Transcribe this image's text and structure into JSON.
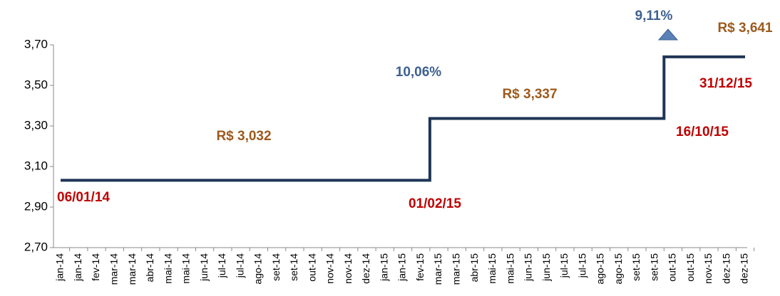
{
  "chart_data": {
    "type": "step",
    "categories": [
      "jan-14",
      "jan-14",
      "fev-14",
      "mar-14",
      "mar-14",
      "abr-14",
      "mai-14",
      "mai-14",
      "jun-14",
      "jul-14",
      "jul-14",
      "ago-14",
      "set-14",
      "set-14",
      "out-14",
      "nov-14",
      "nov-14",
      "dez-14",
      "jan-15",
      "jan-15",
      "fev-15",
      "mar-15",
      "mar-15",
      "abr-15",
      "mai-15",
      "mai-15",
      "jun-15",
      "jun-15",
      "jul-15",
      "jul-15",
      "ago-15",
      "ago-15",
      "set-15",
      "set-15",
      "out-15",
      "out-15",
      "nov-15",
      "dez-15",
      "dez-15"
    ],
    "series": [
      {
        "color": "#1f3556",
        "values": [
          3.032,
          3.032,
          3.032,
          3.032,
          3.032,
          3.032,
          3.032,
          3.032,
          3.032,
          3.032,
          3.032,
          3.032,
          3.032,
          3.032,
          3.032,
          3.032,
          3.032,
          3.032,
          3.032,
          3.032,
          3.032,
          3.337,
          3.337,
          3.337,
          3.337,
          3.337,
          3.337,
          3.337,
          3.337,
          3.337,
          3.337,
          3.337,
          3.337,
          3.337,
          3.641,
          3.641,
          3.641,
          3.641,
          3.641
        ]
      }
    ],
    "ylim": [
      2.7,
      3.7
    ],
    "yticks": [
      {
        "value": 2.7,
        "label": "2,70"
      },
      {
        "value": 2.9,
        "label": "2,90"
      },
      {
        "value": 3.1,
        "label": "3,10"
      },
      {
        "value": 3.3,
        "label": "3,30"
      },
      {
        "value": 3.5,
        "label": "3,50"
      },
      {
        "value": 3.7,
        "label": "3,70"
      }
    ],
    "annotations": [
      {
        "text": "06/01/14",
        "color": "#c00000"
      },
      {
        "text": "R$ 3,032",
        "color": "#9c5a1c"
      },
      {
        "text": "10,06%",
        "color": "#3d6190"
      },
      {
        "text": "01/02/15",
        "color": "#c00000"
      },
      {
        "text": "R$ 3,337",
        "color": "#9c5a1c"
      },
      {
        "text": "16/10/15",
        "color": "#c00000"
      },
      {
        "text": "31/12/15",
        "color": "#c00000"
      },
      {
        "text": "9,11%",
        "color": "#3d6190"
      },
      {
        "text": "R$ 3,641",
        "color": "#9c5a1c"
      }
    ]
  }
}
